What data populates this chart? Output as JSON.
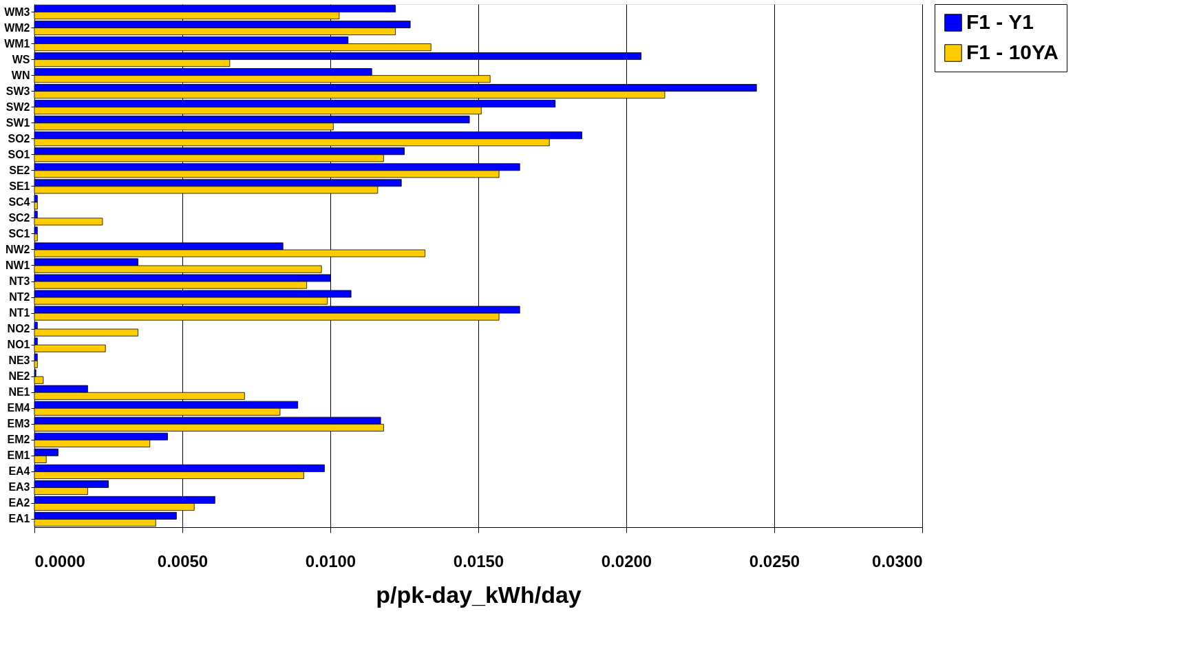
{
  "chart_data": {
    "type": "bar",
    "orientation": "horizontal",
    "xlabel": "p/pk-day_kWh/day",
    "categories": [
      "WM3",
      "WM2",
      "WM1",
      "WS",
      "WN",
      "SW3",
      "SW2",
      "SW1",
      "SO2",
      "SO1",
      "SE2",
      "SE1",
      "SC4",
      "SC2",
      "SC1",
      "NW2",
      "NW1",
      "NT3",
      "NT2",
      "NT1",
      "NO2",
      "NO1",
      "NE3",
      "NE2",
      "NE1",
      "EM4",
      "EM3",
      "EM2",
      "EM1",
      "EA4",
      "EA3",
      "EA2",
      "EA1"
    ],
    "series": [
      {
        "name": "F1 - Y1",
        "color": "#0000ff",
        "values": [
          0.0122,
          0.0127,
          0.0106,
          0.0205,
          0.0114,
          0.0244,
          0.0176,
          0.0147,
          0.0185,
          0.0125,
          0.0164,
          0.0124,
          0.0001,
          0.0001,
          0.0001,
          0.0084,
          0.0035,
          0.01,
          0.0107,
          0.0164,
          0.0001,
          0.0001,
          0.0001,
          5e-05,
          0.0018,
          0.0089,
          0.0117,
          0.0045,
          0.0008,
          0.0098,
          0.0025,
          0.0061,
          0.0048
        ]
      },
      {
        "name": "F1 - 10YA",
        "color": "#ffcc00",
        "values": [
          0.0103,
          0.0122,
          0.0134,
          0.0066,
          0.0154,
          0.0213,
          0.0151,
          0.0101,
          0.0174,
          0.0118,
          0.0157,
          0.0116,
          0.0001,
          0.0023,
          0.0001,
          0.0132,
          0.0097,
          0.0092,
          0.0099,
          0.0157,
          0.0035,
          0.0024,
          0.0001,
          0.0003,
          0.0071,
          0.0083,
          0.0118,
          0.0039,
          0.0004,
          0.0091,
          0.0018,
          0.0054,
          0.0041
        ]
      }
    ],
    "xlim": [
      0,
      0.03
    ],
    "xticks": [
      {
        "value": 0,
        "label": "0.0000"
      },
      {
        "value": 0.005,
        "label": "0.0050"
      },
      {
        "value": 0.01,
        "label": "0.0100"
      },
      {
        "value": 0.015,
        "label": "0.0150"
      },
      {
        "value": 0.02,
        "label": "0.0200"
      },
      {
        "value": 0.025,
        "label": "0.0250"
      },
      {
        "value": 0.03,
        "label": "0.0300"
      }
    ],
    "grid": "x",
    "legend": "right"
  }
}
